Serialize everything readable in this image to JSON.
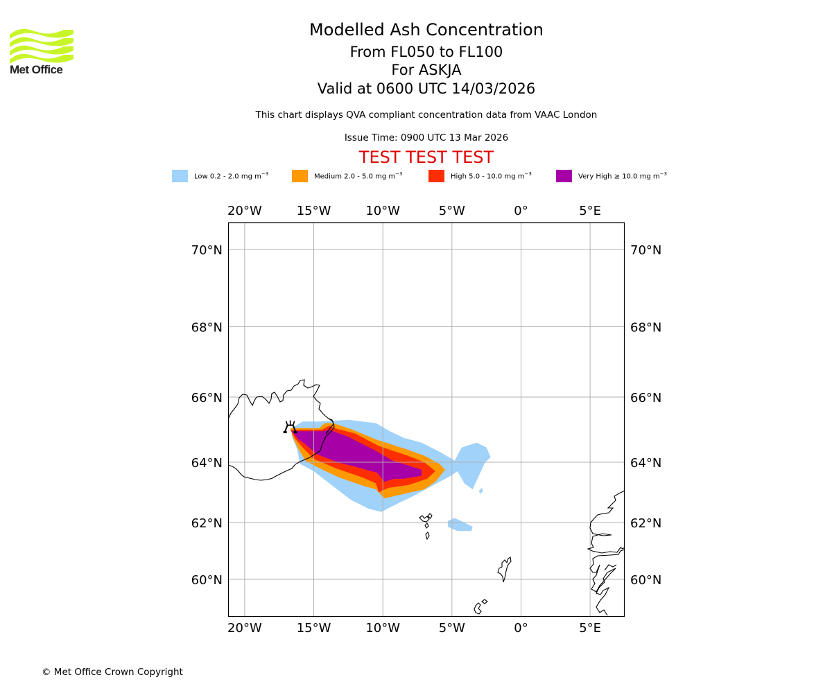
{
  "header": {
    "logo_name": "Met Office",
    "title": "Modelled Ash Concentration",
    "levels": "From FL050 to FL100",
    "volcano": "For ASKJA",
    "valid": "Valid at 0600 UTC 14/03/2026",
    "description": "This chart displays QVA compliant concentration data from VAAC London",
    "issue_time": "Issue Time: 0900 UTC 13 Mar 2026",
    "test_banner": "TEST TEST TEST",
    "test_color": "#e00000"
  },
  "legend": [
    {
      "label": "Low 0.2 - 2.0 mg m",
      "exp": "−3",
      "color": "#a0d2fa"
    },
    {
      "label": "Medium 2.0 - 5.0 mg m",
      "exp": "−3",
      "color": "#ff9900"
    },
    {
      "label": "High 5.0 - 10.0 mg m",
      "exp": "−3",
      "color": "#ff2e00"
    },
    {
      "label": "Very High ≥ 10.0 mg m",
      "exp": "−3",
      "color": "#a600a6"
    }
  ],
  "chart_data": {
    "type": "heatmap",
    "title": "Modelled Ash Concentration",
    "subtitle": "From FL050 to FL100 / For ASKJA / Valid at 0600 UTC 14/03/2026",
    "projection": "lat-lon map",
    "lon_range": [
      -21.2,
      7.5
    ],
    "lat_range": [
      58.9,
      70.7
    ],
    "grid": true,
    "x_ticks": [
      "20°W",
      "15°W",
      "10°W",
      "5°W",
      "0°",
      "5°E"
    ],
    "x_tick_values": [
      -20,
      -15,
      -10,
      -5,
      0,
      5
    ],
    "y_ticks": [
      "70°N",
      "68°N",
      "66°N",
      "64°N",
      "62°N",
      "60°N"
    ],
    "y_tick_values": [
      70,
      68,
      66,
      64,
      62,
      60
    ],
    "volcano": {
      "name": "ASKJA",
      "lon": -16.7,
      "lat": 65.05,
      "icon": "volcano-icon"
    },
    "concentration_levels": [
      {
        "name": "Low",
        "range": "0.2 - 2.0 mg m-3",
        "polygons": [
          [
            [
              -16.6,
              65.05
            ],
            [
              -15.8,
              65.25
            ],
            [
              -14.5,
              65.25
            ],
            [
              -12.5,
              65.3
            ],
            [
              -10.5,
              65.2
            ],
            [
              -9.5,
              64.95
            ],
            [
              -8.5,
              64.75
            ],
            [
              -7.2,
              64.6
            ],
            [
              -5.8,
              64.3
            ],
            [
              -4.8,
              64.05
            ],
            [
              -4.3,
              64.45
            ],
            [
              -3.2,
              64.6
            ],
            [
              -2.5,
              64.45
            ],
            [
              -2.2,
              64.15
            ],
            [
              -2.6,
              64.0
            ],
            [
              -3.0,
              63.6
            ],
            [
              -3.5,
              63.1
            ],
            [
              -4.1,
              63.3
            ],
            [
              -4.6,
              63.7
            ],
            [
              -5.1,
              63.55
            ],
            [
              -6.5,
              63.2
            ],
            [
              -7.7,
              62.9
            ],
            [
              -8.6,
              62.7
            ],
            [
              -9.5,
              62.5
            ],
            [
              -10.1,
              62.35
            ],
            [
              -11.0,
              62.45
            ],
            [
              -12.3,
              62.75
            ],
            [
              -13.6,
              63.2
            ],
            [
              -15.0,
              63.7
            ],
            [
              -16.0,
              63.95
            ],
            [
              -16.2,
              64.4
            ],
            [
              -16.6,
              64.8
            ]
          ],
          [
            [
              -5.3,
              62.05
            ],
            [
              -4.8,
              62.15
            ],
            [
              -4.1,
              62.0
            ],
            [
              -3.5,
              61.85
            ],
            [
              -3.6,
              61.7
            ],
            [
              -4.6,
              61.7
            ],
            [
              -5.3,
              61.85
            ]
          ],
          [
            [
              -3.05,
              63.05
            ],
            [
              -2.85,
              63.15
            ],
            [
              -2.75,
              63.05
            ],
            [
              -2.95,
              62.95
            ]
          ]
        ]
      },
      {
        "name": "Medium",
        "range": "2.0 - 5.0 mg m-3",
        "polygons": [
          [
            [
              -16.7,
              65.05
            ],
            [
              -16.1,
              65.05
            ],
            [
              -14.6,
              65.05
            ],
            [
              -14.2,
              65.2
            ],
            [
              -13.6,
              65.2
            ],
            [
              -12.2,
              65.0
            ],
            [
              -10.5,
              64.7
            ],
            [
              -8.3,
              64.4
            ],
            [
              -7.0,
              64.2
            ],
            [
              -5.9,
              63.95
            ],
            [
              -5.5,
              63.75
            ],
            [
              -6.2,
              63.35
            ],
            [
              -7.0,
              63.1
            ],
            [
              -8.5,
              62.95
            ],
            [
              -9.9,
              62.8
            ],
            [
              -10.5,
              63.1
            ],
            [
              -11.3,
              63.2
            ],
            [
              -13.2,
              63.5
            ],
            [
              -14.8,
              63.85
            ],
            [
              -15.6,
              64.05
            ],
            [
              -16.1,
              64.4
            ],
            [
              -16.5,
              64.75
            ]
          ]
        ]
      },
      {
        "name": "High",
        "range": "5.0 - 10.0 mg m-3",
        "polygons": [
          [
            [
              -16.7,
              65.0
            ],
            [
              -16.0,
              65.0
            ],
            [
              -14.4,
              65.0
            ],
            [
              -13.9,
              65.12
            ],
            [
              -13.5,
              65.05
            ],
            [
              -12.0,
              64.88
            ],
            [
              -10.3,
              64.5
            ],
            [
              -8.2,
              64.2
            ],
            [
              -7.0,
              64.0
            ],
            [
              -6.2,
              63.7
            ],
            [
              -6.8,
              63.45
            ],
            [
              -8.1,
              63.25
            ],
            [
              -9.6,
              63.15
            ],
            [
              -10.3,
              63.0
            ],
            [
              -10.5,
              63.3
            ],
            [
              -11.5,
              63.5
            ],
            [
              -13.4,
              63.8
            ],
            [
              -15.0,
              64.1
            ],
            [
              -15.8,
              64.45
            ],
            [
              -16.3,
              64.7
            ]
          ]
        ]
      },
      {
        "name": "Very High",
        "range": ">= 10.0 mg m-3",
        "polygons": [
          [
            [
              -16.6,
              64.95
            ],
            [
              -15.2,
              64.95
            ],
            [
              -14.3,
              64.95
            ],
            [
              -13.9,
              65.0
            ],
            [
              -12.5,
              64.78
            ],
            [
              -10.5,
              64.35
            ],
            [
              -9.3,
              64.05
            ],
            [
              -8.2,
              63.9
            ],
            [
              -7.2,
              63.75
            ],
            [
              -7.2,
              63.55
            ],
            [
              -8.5,
              63.45
            ],
            [
              -9.2,
              63.45
            ],
            [
              -9.9,
              63.35
            ],
            [
              -10.4,
              63.65
            ],
            [
              -12.0,
              63.85
            ],
            [
              -13.3,
              64.0
            ],
            [
              -14.8,
              64.25
            ],
            [
              -15.6,
              64.55
            ],
            [
              -16.1,
              64.7
            ]
          ]
        ]
      }
    ]
  },
  "footer": {
    "copyright": "© Met Office Crown Copyright"
  }
}
